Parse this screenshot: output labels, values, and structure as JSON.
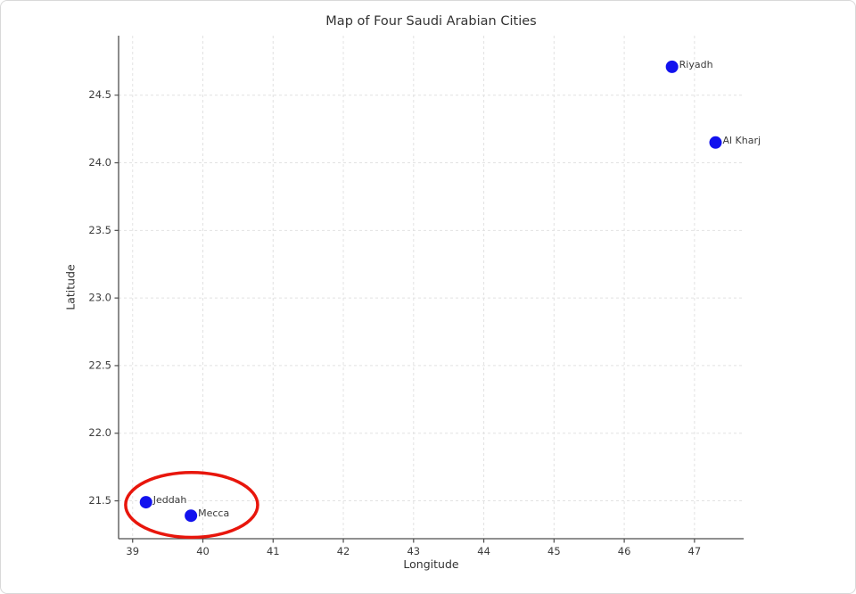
{
  "chart_data": {
    "type": "scatter",
    "title": "Map of Four Saudi Arabian Cities",
    "xlabel": "Longitude",
    "ylabel": "Latitude",
    "xlim": [
      38.8,
      47.7
    ],
    "ylim": [
      21.22,
      24.94
    ],
    "grid": true,
    "grid_style": "dashed",
    "legend_position": "none",
    "xtick_values": [
      39,
      40,
      41,
      42,
      43,
      44,
      45,
      46,
      47
    ],
    "xtick_labels": [
      "39",
      "40",
      "41",
      "42",
      "43",
      "44",
      "45",
      "46",
      "47"
    ],
    "ytick_values": [
      21.5,
      22.0,
      22.5,
      23.0,
      23.5,
      24.0,
      24.5
    ],
    "ytick_labels": [
      "21.5",
      "22.0",
      "22.5",
      "23.0",
      "23.5",
      "24.0",
      "24.5"
    ],
    "points": [
      {
        "label": "Riyadh",
        "x": 46.68,
        "y": 24.71
      },
      {
        "label": "Al Kharj",
        "x": 47.3,
        "y": 24.15
      },
      {
        "label": "Jeddah",
        "x": 39.19,
        "y": 21.49
      },
      {
        "label": "Mecca",
        "x": 39.83,
        "y": 21.39
      }
    ],
    "point_color": "#1212ee",
    "point_radius_px": 7,
    "annotation_ellipse": {
      "cx": 39.84,
      "cy": 21.47,
      "rx": 0.94,
      "ry": 0.24,
      "color": "#e8160c",
      "stroke_width_px": 3.5,
      "encloses": [
        "Jeddah",
        "Mecca"
      ]
    },
    "axis_color": "#4d4d4d",
    "grid_color": "#e2e2e2",
    "text_color": "#333333"
  }
}
